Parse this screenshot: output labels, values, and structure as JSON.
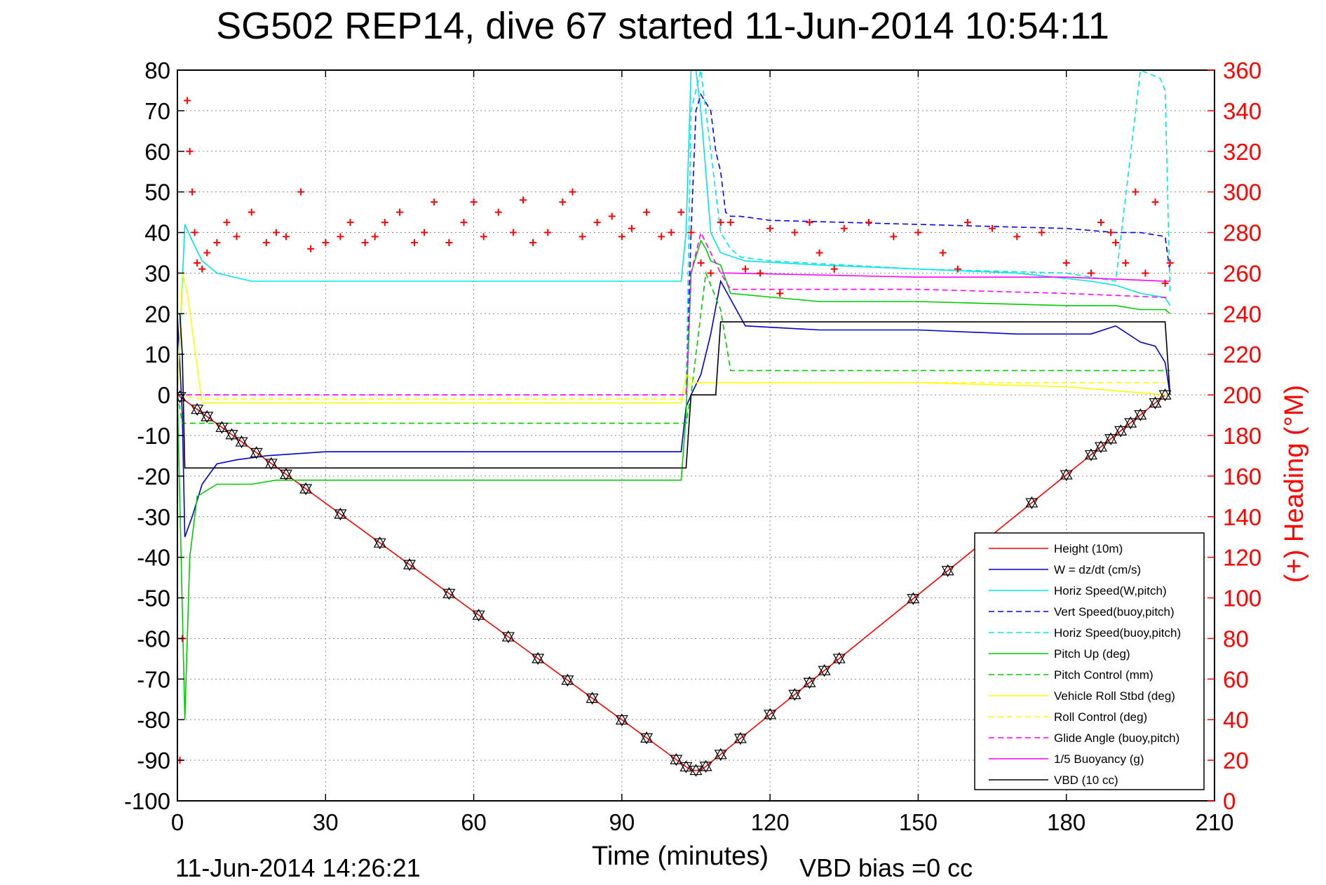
{
  "chart_data": {
    "type": "line",
    "title": "SG502 REP14, dive 67 started 11-Jun-2014 10:54:11",
    "xlabel": "Time (minutes)",
    "ylabel_right": "(+) Heading (°M)",
    "footer_left": "11-Jun-2014 14:26:21",
    "footer_right": "VBD bias =0 cc",
    "xlim": [
      0,
      210
    ],
    "ylim_left": [
      -100,
      80
    ],
    "ylim_right": [
      0,
      360
    ],
    "xticks": [
      0,
      30,
      60,
      90,
      120,
      150,
      180,
      210
    ],
    "yticks_left": [
      80,
      70,
      60,
      50,
      40,
      30,
      20,
      10,
      0,
      -10,
      -20,
      -30,
      -40,
      -50,
      -60,
      -70,
      -80,
      -90,
      -100
    ],
    "yticks_right": [
      360,
      340,
      320,
      300,
      280,
      260,
      240,
      220,
      200,
      180,
      160,
      140,
      120,
      100,
      80,
      60,
      40,
      20,
      0
    ],
    "grid": true,
    "legend_position": "bottom-right",
    "series": [
      {
        "name": "Height (10m)",
        "color": "#ff0000",
        "style": "solid",
        "axis": "left",
        "x": [
          0,
          104,
          106,
          200
        ],
        "y": [
          0,
          -92.5,
          -92.5,
          0
        ]
      },
      {
        "name": "W = dz/dt (cm/s)",
        "color": "#0000cc",
        "style": "solid",
        "axis": "left",
        "x": [
          0,
          1,
          1.5,
          3,
          5,
          8,
          12,
          18,
          30,
          60,
          90,
          102,
          103,
          104,
          106,
          108,
          110,
          115,
          130,
          150,
          170,
          185,
          190,
          195,
          198,
          200,
          201
        ],
        "y": [
          20,
          -5,
          -35,
          -30,
          -22,
          -17,
          -16,
          -15,
          -14,
          -14,
          -14,
          -14,
          -3,
          0,
          5,
          15,
          28,
          17,
          16,
          16,
          15,
          15,
          17,
          13,
          12,
          8,
          0
        ]
      },
      {
        "name": "Horiz Speed(W,pitch)",
        "color": "#00e5e5",
        "style": "solid",
        "axis": "left",
        "x": [
          0,
          1.5,
          3,
          5,
          8,
          15,
          30,
          60,
          90,
          102,
          103,
          104,
          105,
          106,
          108,
          110,
          115,
          130,
          150,
          170,
          185,
          190,
          195,
          200,
          201
        ],
        "y": [
          0,
          42,
          38,
          33,
          30,
          28,
          28,
          28,
          28,
          28,
          40,
          80,
          80,
          70,
          40,
          35,
          33,
          32,
          31,
          30,
          28,
          27,
          25,
          24,
          22
        ]
      },
      {
        "name": "Vert Speed(buoy,pitch)",
        "color": "#0000ff",
        "style": "dashed",
        "axis": "left",
        "x": [
          103,
          104,
          105,
          106,
          107,
          108,
          109,
          110,
          111,
          112,
          114,
          120,
          150,
          180,
          190,
          195,
          200,
          201
        ],
        "y": [
          0,
          40,
          70,
          74,
          72,
          70,
          60,
          55,
          45,
          44,
          44,
          43,
          42,
          41,
          40,
          40,
          39,
          30
        ]
      },
      {
        "name": "Horiz Speed(buoy,pitch)",
        "color": "#00e5e5",
        "style": "dashed",
        "axis": "left",
        "x": [
          103,
          104,
          106,
          108,
          110,
          112,
          114,
          120,
          150,
          180,
          190,
          195,
          199,
          200,
          201
        ],
        "y": [
          0,
          70,
          80,
          60,
          40,
          36,
          34,
          33,
          31,
          30,
          28,
          80,
          78,
          75,
          25
        ]
      },
      {
        "name": "Pitch Up (deg)",
        "color": "#00cc00",
        "style": "solid",
        "axis": "left",
        "x": [
          0,
          1.5,
          2.5,
          4,
          8,
          15,
          20,
          30,
          60,
          90,
          102,
          103,
          104,
          106,
          107,
          108,
          110,
          112,
          130,
          150,
          180,
          190,
          195,
          200,
          201
        ],
        "y": [
          0,
          -80,
          -40,
          -25,
          -22,
          -22,
          -21,
          -21,
          -21,
          -21,
          -21,
          -5,
          30,
          38,
          36,
          33,
          32,
          25,
          23,
          23,
          22,
          22,
          21,
          21,
          20
        ]
      },
      {
        "name": "Pitch Control (mm)",
        "color": "#00cc00",
        "style": "dashed",
        "axis": "left",
        "x": [
          0,
          1,
          4,
          103,
          104,
          107,
          110,
          112,
          200,
          201
        ],
        "y": [
          0,
          -7,
          -7,
          -7,
          0,
          30,
          21,
          6,
          6,
          6
        ]
      },
      {
        "name": "Vehicle Roll Stbd (deg)",
        "color": "#ffff00",
        "style": "solid",
        "axis": "left",
        "x": [
          0,
          1,
          2,
          5,
          8,
          30,
          60,
          90,
          102,
          103,
          105,
          110,
          130,
          150,
          180,
          190,
          200
        ],
        "y": [
          0,
          30,
          25,
          -2,
          -2,
          -2,
          -2,
          -2,
          -2,
          5,
          3,
          3,
          3,
          3,
          2,
          1,
          0
        ]
      },
      {
        "name": "Roll Control (deg)",
        "color": "#ffff00",
        "style": "dashed",
        "axis": "left",
        "x": [
          0,
          5,
          30,
          60,
          90,
          102,
          104,
          110,
          130,
          160,
          190,
          200
        ],
        "y": [
          0,
          -1,
          -1,
          -1,
          -1,
          -1,
          3,
          3,
          3,
          3,
          3,
          3
        ]
      },
      {
        "name": "Glide Angle (buoy,pitch)",
        "color": "#ff00ff",
        "style": "dashed",
        "axis": "left",
        "x": [
          0,
          103,
          104,
          106,
          110,
          112,
          150,
          180,
          200,
          201
        ],
        "y": [
          0,
          0,
          30,
          40,
          30,
          26,
          26,
          25,
          24,
          24
        ]
      },
      {
        "name": "1/5 Buoyancy (g)",
        "color": "#ff00ff",
        "style": "solid",
        "axis": "left",
        "x": [
          110,
          112,
          150,
          180,
          200,
          201
        ],
        "y": [
          30,
          30,
          29,
          29,
          28,
          28
        ]
      },
      {
        "name": "VBD (10 cc)",
        "color": "#000000",
        "style": "solid",
        "axis": "left",
        "x": [
          0,
          0.5,
          1,
          1.5,
          103,
          104,
          109,
          110,
          200,
          201
        ],
        "y": [
          20,
          20,
          10,
          -18,
          -18,
          0,
          0,
          18,
          18,
          0
        ]
      },
      {
        "name": "Heading",
        "color": "#ff0000",
        "style": "markers",
        "axis": "right",
        "x": [
          0.5,
          1,
          1.5,
          2,
          2.5,
          3,
          3.5,
          4,
          5,
          6,
          8,
          10,
          12,
          15,
          18,
          20,
          22,
          25,
          27,
          30,
          33,
          35,
          38,
          40,
          42,
          45,
          48,
          50,
          52,
          55,
          58,
          60,
          62,
          65,
          68,
          70,
          72,
          75,
          78,
          80,
          82,
          85,
          88,
          90,
          92,
          95,
          98,
          100,
          102,
          104,
          106,
          108,
          110,
          112,
          115,
          118,
          120,
          122,
          125,
          128,
          130,
          133,
          135,
          140,
          145,
          150,
          155,
          158,
          160,
          165,
          170,
          175,
          180,
          185,
          187,
          189,
          190,
          192,
          194,
          196,
          198,
          200,
          201
        ],
        "y": [
          20,
          80,
          365,
          345,
          320,
          300,
          280,
          265,
          262,
          270,
          275,
          285,
          278,
          290,
          275,
          280,
          278,
          300,
          272,
          275,
          278,
          285,
          275,
          278,
          285,
          290,
          275,
          280,
          295,
          275,
          285,
          295,
          278,
          290,
          280,
          296,
          275,
          280,
          295,
          300,
          278,
          285,
          288,
          278,
          282,
          290,
          278,
          280,
          290,
          280,
          265,
          260,
          285,
          285,
          262,
          260,
          282,
          250,
          280,
          285,
          270,
          262,
          282,
          285,
          278,
          280,
          270,
          262,
          285,
          282,
          278,
          280,
          265,
          260,
          285,
          280,
          275,
          265,
          300,
          260,
          295,
          255,
          265
        ]
      }
    ]
  }
}
